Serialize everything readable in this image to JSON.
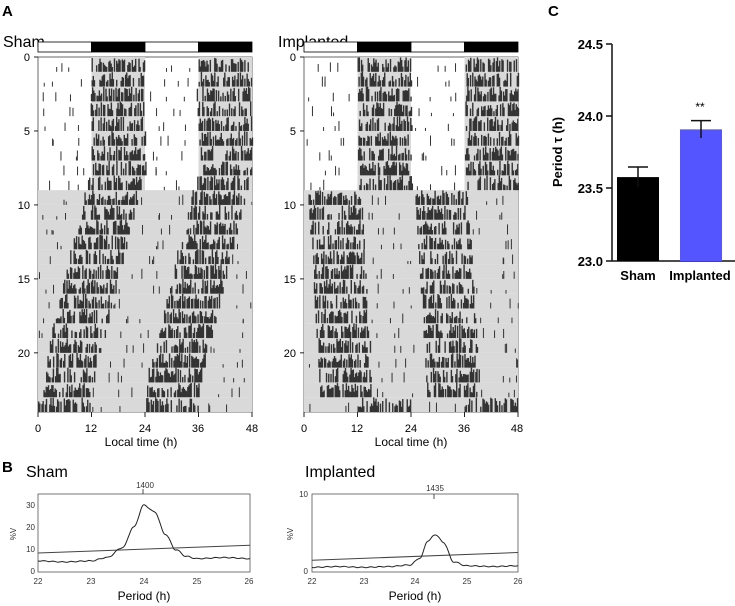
{
  "panel_a": {
    "label": "A",
    "sham_title": "Sham",
    "implanted_title": "Implanted",
    "x_ticks": [
      "0",
      "12",
      "24",
      "36",
      "48"
    ],
    "y_ticks": [
      "0",
      "5",
      "10",
      "15",
      "20"
    ],
    "xlabel": "Local time (h)"
  },
  "panel_b": {
    "label": "B",
    "sham_title": "Sham",
    "implanted_title": "Implanted",
    "sham_peak": "1400",
    "implanted_peak": "1435",
    "sham_y_ticks": [
      "0",
      "10",
      "20",
      "30"
    ],
    "implanted_y_ticks": [
      "0",
      "10"
    ],
    "ylabel": "%V",
    "x_ticks": [
      "22",
      "23",
      "24",
      "25",
      "26"
    ],
    "xlabel": "Period (h)"
  },
  "panel_c": {
    "label": "C",
    "significance": "**"
  },
  "colors": {
    "sham_bar": "#000000",
    "implanted_bar": "#5555ff",
    "shading": "#d9d9d9",
    "actogram_marks": "#333333"
  },
  "chart_data": [
    {
      "type": "bar",
      "title": "",
      "categories": [
        "Sham",
        "Implanted"
      ],
      "values": [
        23.58,
        23.91
      ],
      "errors": [
        0.07,
        0.06
      ],
      "ylabel": "Period τ (h)",
      "ylim": [
        23.0,
        24.5
      ],
      "yticks": [
        "23.0",
        "23.5",
        "24.0",
        "24.5"
      ]
    },
    {
      "type": "line",
      "title": "Sham",
      "x": [
        22.0,
        22.5,
        23.0,
        23.3,
        23.6,
        23.8,
        24.0,
        24.2,
        24.4,
        24.6,
        24.8,
        25.0,
        25.5,
        26.0
      ],
      "values": [
        5,
        4.5,
        5,
        6.5,
        11,
        20,
        30,
        27,
        17,
        10,
        7,
        6,
        6.5,
        6
      ],
      "threshold": [
        [
          22,
          8.5
        ],
        [
          26,
          12.0
        ]
      ],
      "xlabel": "Period (h)",
      "ylabel": "%V",
      "xlim": [
        22,
        26
      ],
      "ylim": [
        0,
        35
      ]
    },
    {
      "type": "line",
      "title": "Implanted",
      "x": [
        22.0,
        22.5,
        23.0,
        23.5,
        23.9,
        24.1,
        24.25,
        24.4,
        24.55,
        24.75,
        25.0,
        25.5,
        26.0
      ],
      "values": [
        0.6,
        0.7,
        0.6,
        0.7,
        0.9,
        1.8,
        4.0,
        4.8,
        3.8,
        1.3,
        0.8,
        0.7,
        0.8
      ],
      "threshold": [
        [
          22,
          1.5
        ],
        [
          26,
          2.5
        ]
      ],
      "xlabel": "Period (h)",
      "ylabel": "%V",
      "xlim": [
        22,
        26
      ],
      "ylim": [
        0,
        10
      ]
    },
    {
      "type": "actogram",
      "title": "Sham",
      "days": 24,
      "onsets": [
        12,
        12,
        11.6,
        11.8,
        12,
        12.2,
        12,
        12.3,
        11.2,
        10.4,
        9.6,
        8.8,
        8.0,
        7.2,
        6.4,
        5.6,
        4.8,
        4.0,
        3.2,
        2.4,
        1.6,
        0.8,
        0.2,
        0
      ],
      "active_hours": 12,
      "xlabel": "Local time (h)",
      "xlim": [
        0,
        48
      ]
    },
    {
      "type": "actogram",
      "title": "Implanted",
      "days": 24,
      "onsets": [
        12,
        12.2,
        12.1,
        12.2,
        12.3,
        12.2,
        12.1,
        12.3,
        12.4,
        1.0,
        1.2,
        1.4,
        1.6,
        1.8,
        2.0,
        2.2,
        2.4,
        2.6,
        2.8,
        3.0,
        3.2,
        3.4,
        3.6,
        12
      ],
      "active_hours": 12,
      "xlabel": "Local time (h)",
      "xlim": [
        0,
        48
      ]
    }
  ]
}
